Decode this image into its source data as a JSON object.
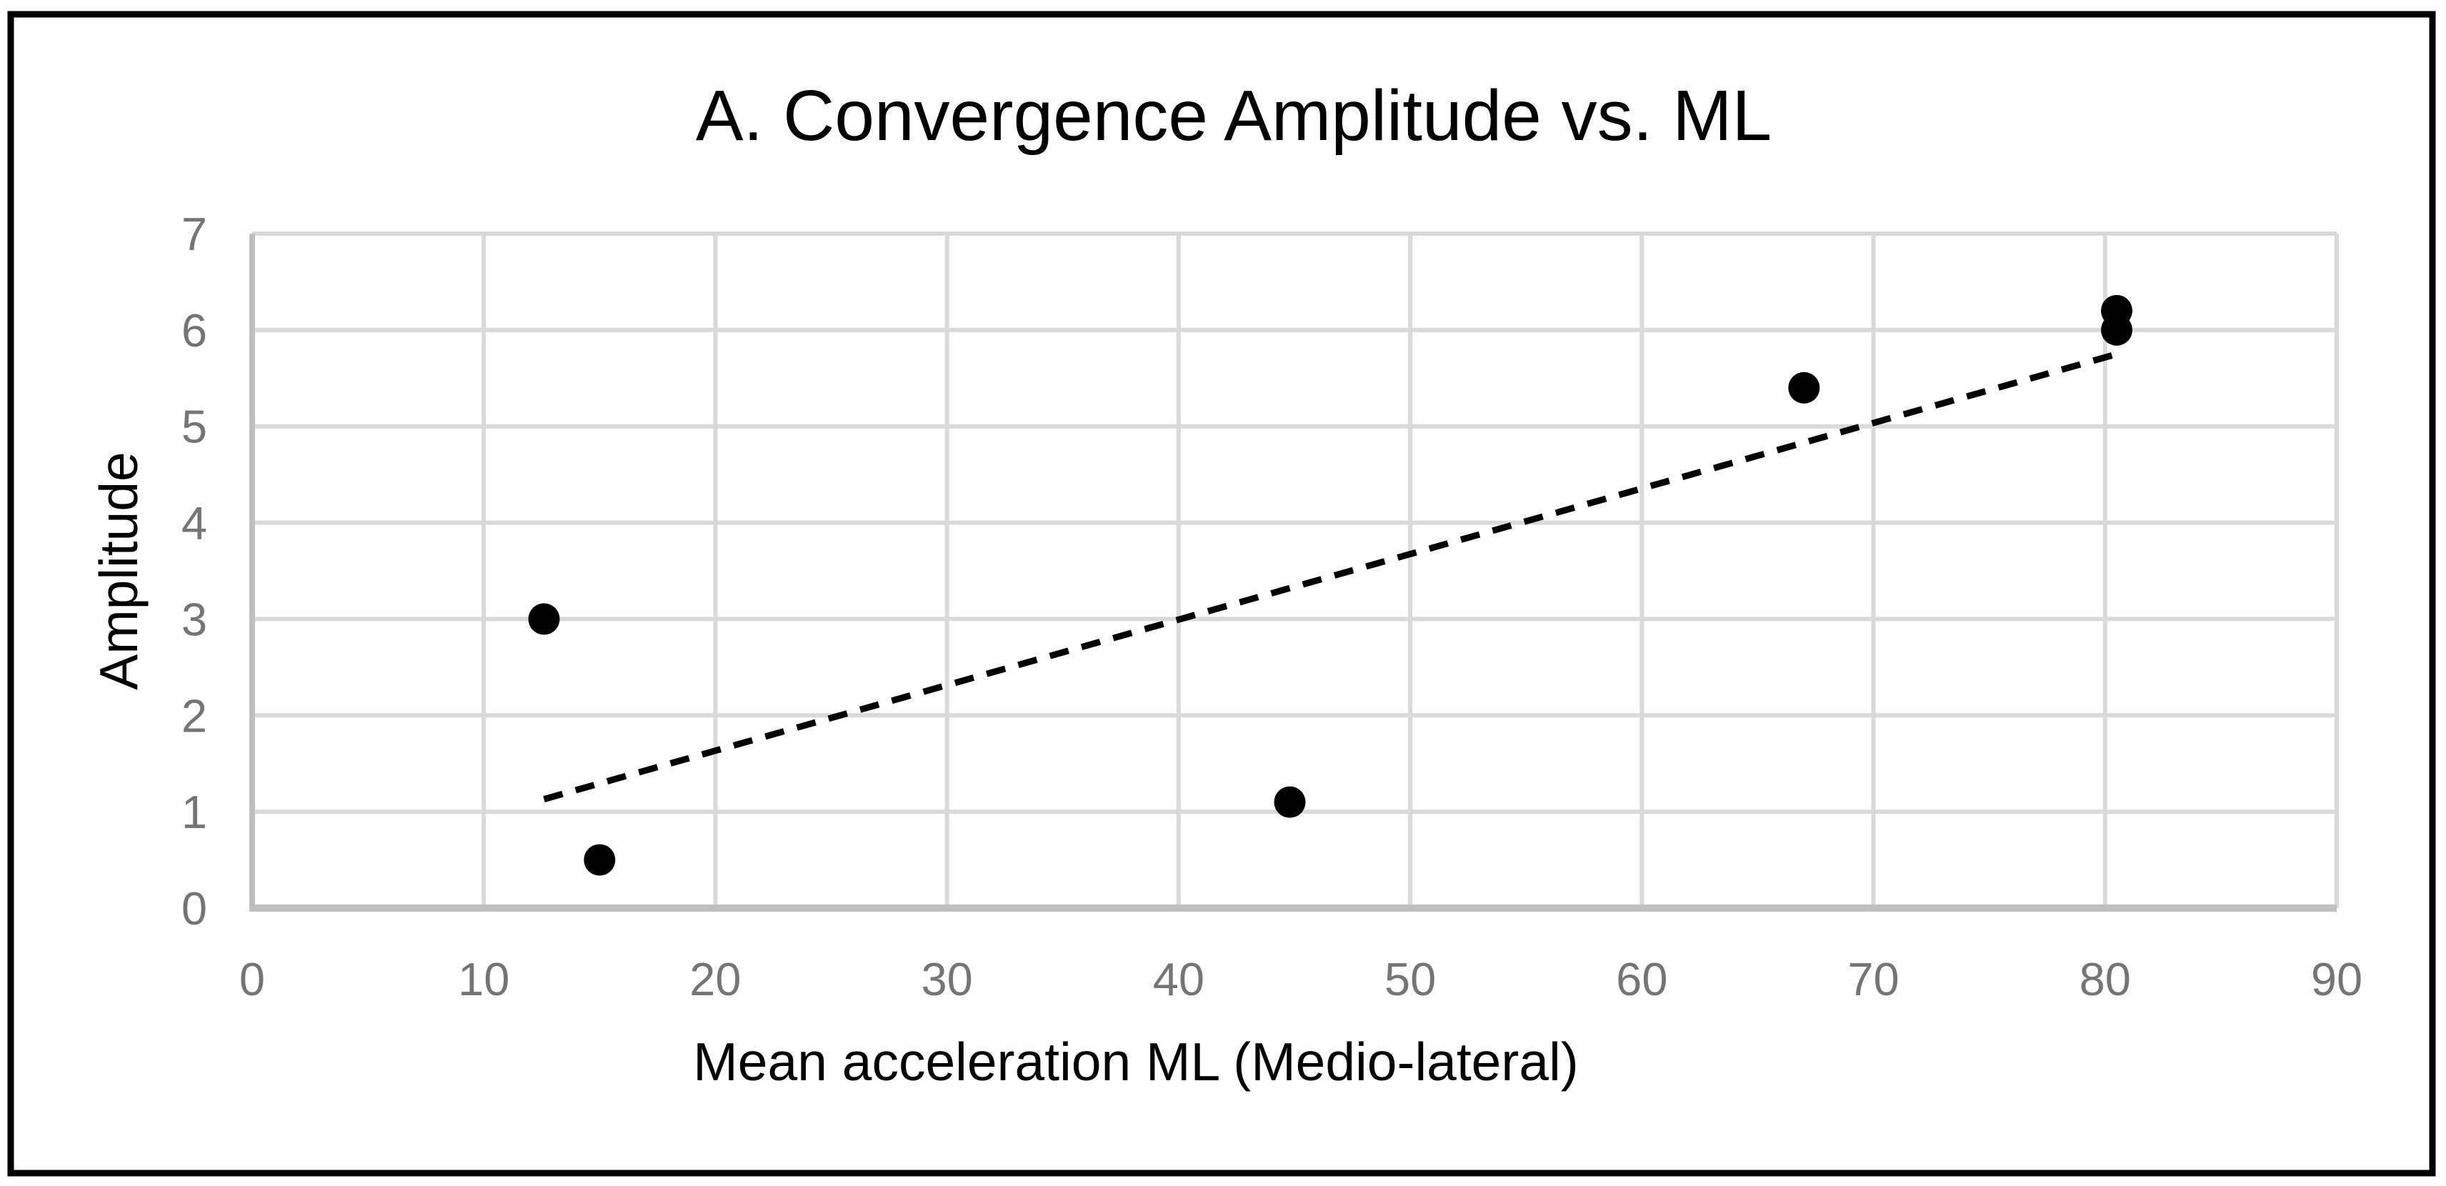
{
  "chart_data": {
    "type": "scatter",
    "title": "A. Convergence Amplitude vs. ML",
    "xlabel": "Mean acceleration ML (Medio-lateral)",
    "ylabel": "Amplitude",
    "xlim": [
      0,
      90
    ],
    "ylim": [
      0,
      7
    ],
    "x_ticks": [
      0,
      10,
      20,
      30,
      40,
      50,
      60,
      70,
      80,
      90
    ],
    "y_ticks": [
      0,
      1,
      2,
      3,
      4,
      5,
      6,
      7
    ],
    "grid": true,
    "legend": "none",
    "points": [
      {
        "x": 12.6,
        "y": 3.0
      },
      {
        "x": 15.0,
        "y": 0.5
      },
      {
        "x": 44.8,
        "y": 1.1
      },
      {
        "x": 67.0,
        "y": 5.4
      },
      {
        "x": 80.5,
        "y": 6.2
      },
      {
        "x": 80.5,
        "y": 6.0
      }
    ],
    "trendline": {
      "style": "dashed",
      "x1": 12.6,
      "y1": 1.13,
      "x2": 80.8,
      "y2": 5.77
    },
    "colors": {
      "point": "#000000",
      "trendline": "#000000",
      "gridline": "#d9d9d9",
      "axis_line": "#bfbfbf",
      "tick_label": "#757575",
      "title": "#000000",
      "axis_title": "#000000",
      "border": "#000000",
      "background": "#ffffff"
    }
  }
}
